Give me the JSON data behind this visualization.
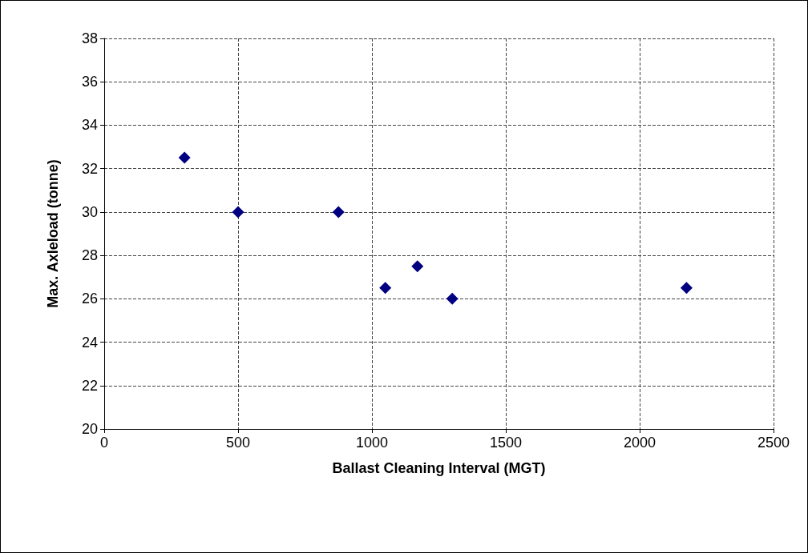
{
  "chart_data": {
    "type": "scatter",
    "xlabel": "Ballast Cleaning Interval (MGT)",
    "ylabel": "Max. Axleload (tonne)",
    "x": [
      300,
      500,
      875,
      1050,
      1170,
      1300,
      2175
    ],
    "values": [
      32.5,
      30,
      30,
      26.5,
      27.5,
      26,
      26.5
    ],
    "color": "#000080",
    "marker": "diamond",
    "xlim": [
      0,
      2500
    ],
    "xticks": [
      0,
      500,
      1000,
      1500,
      2000,
      2500
    ],
    "ylim": [
      20,
      38
    ],
    "yticks": [
      20,
      22,
      24,
      26,
      28,
      30,
      32,
      34,
      36,
      38
    ],
    "grid": true
  }
}
